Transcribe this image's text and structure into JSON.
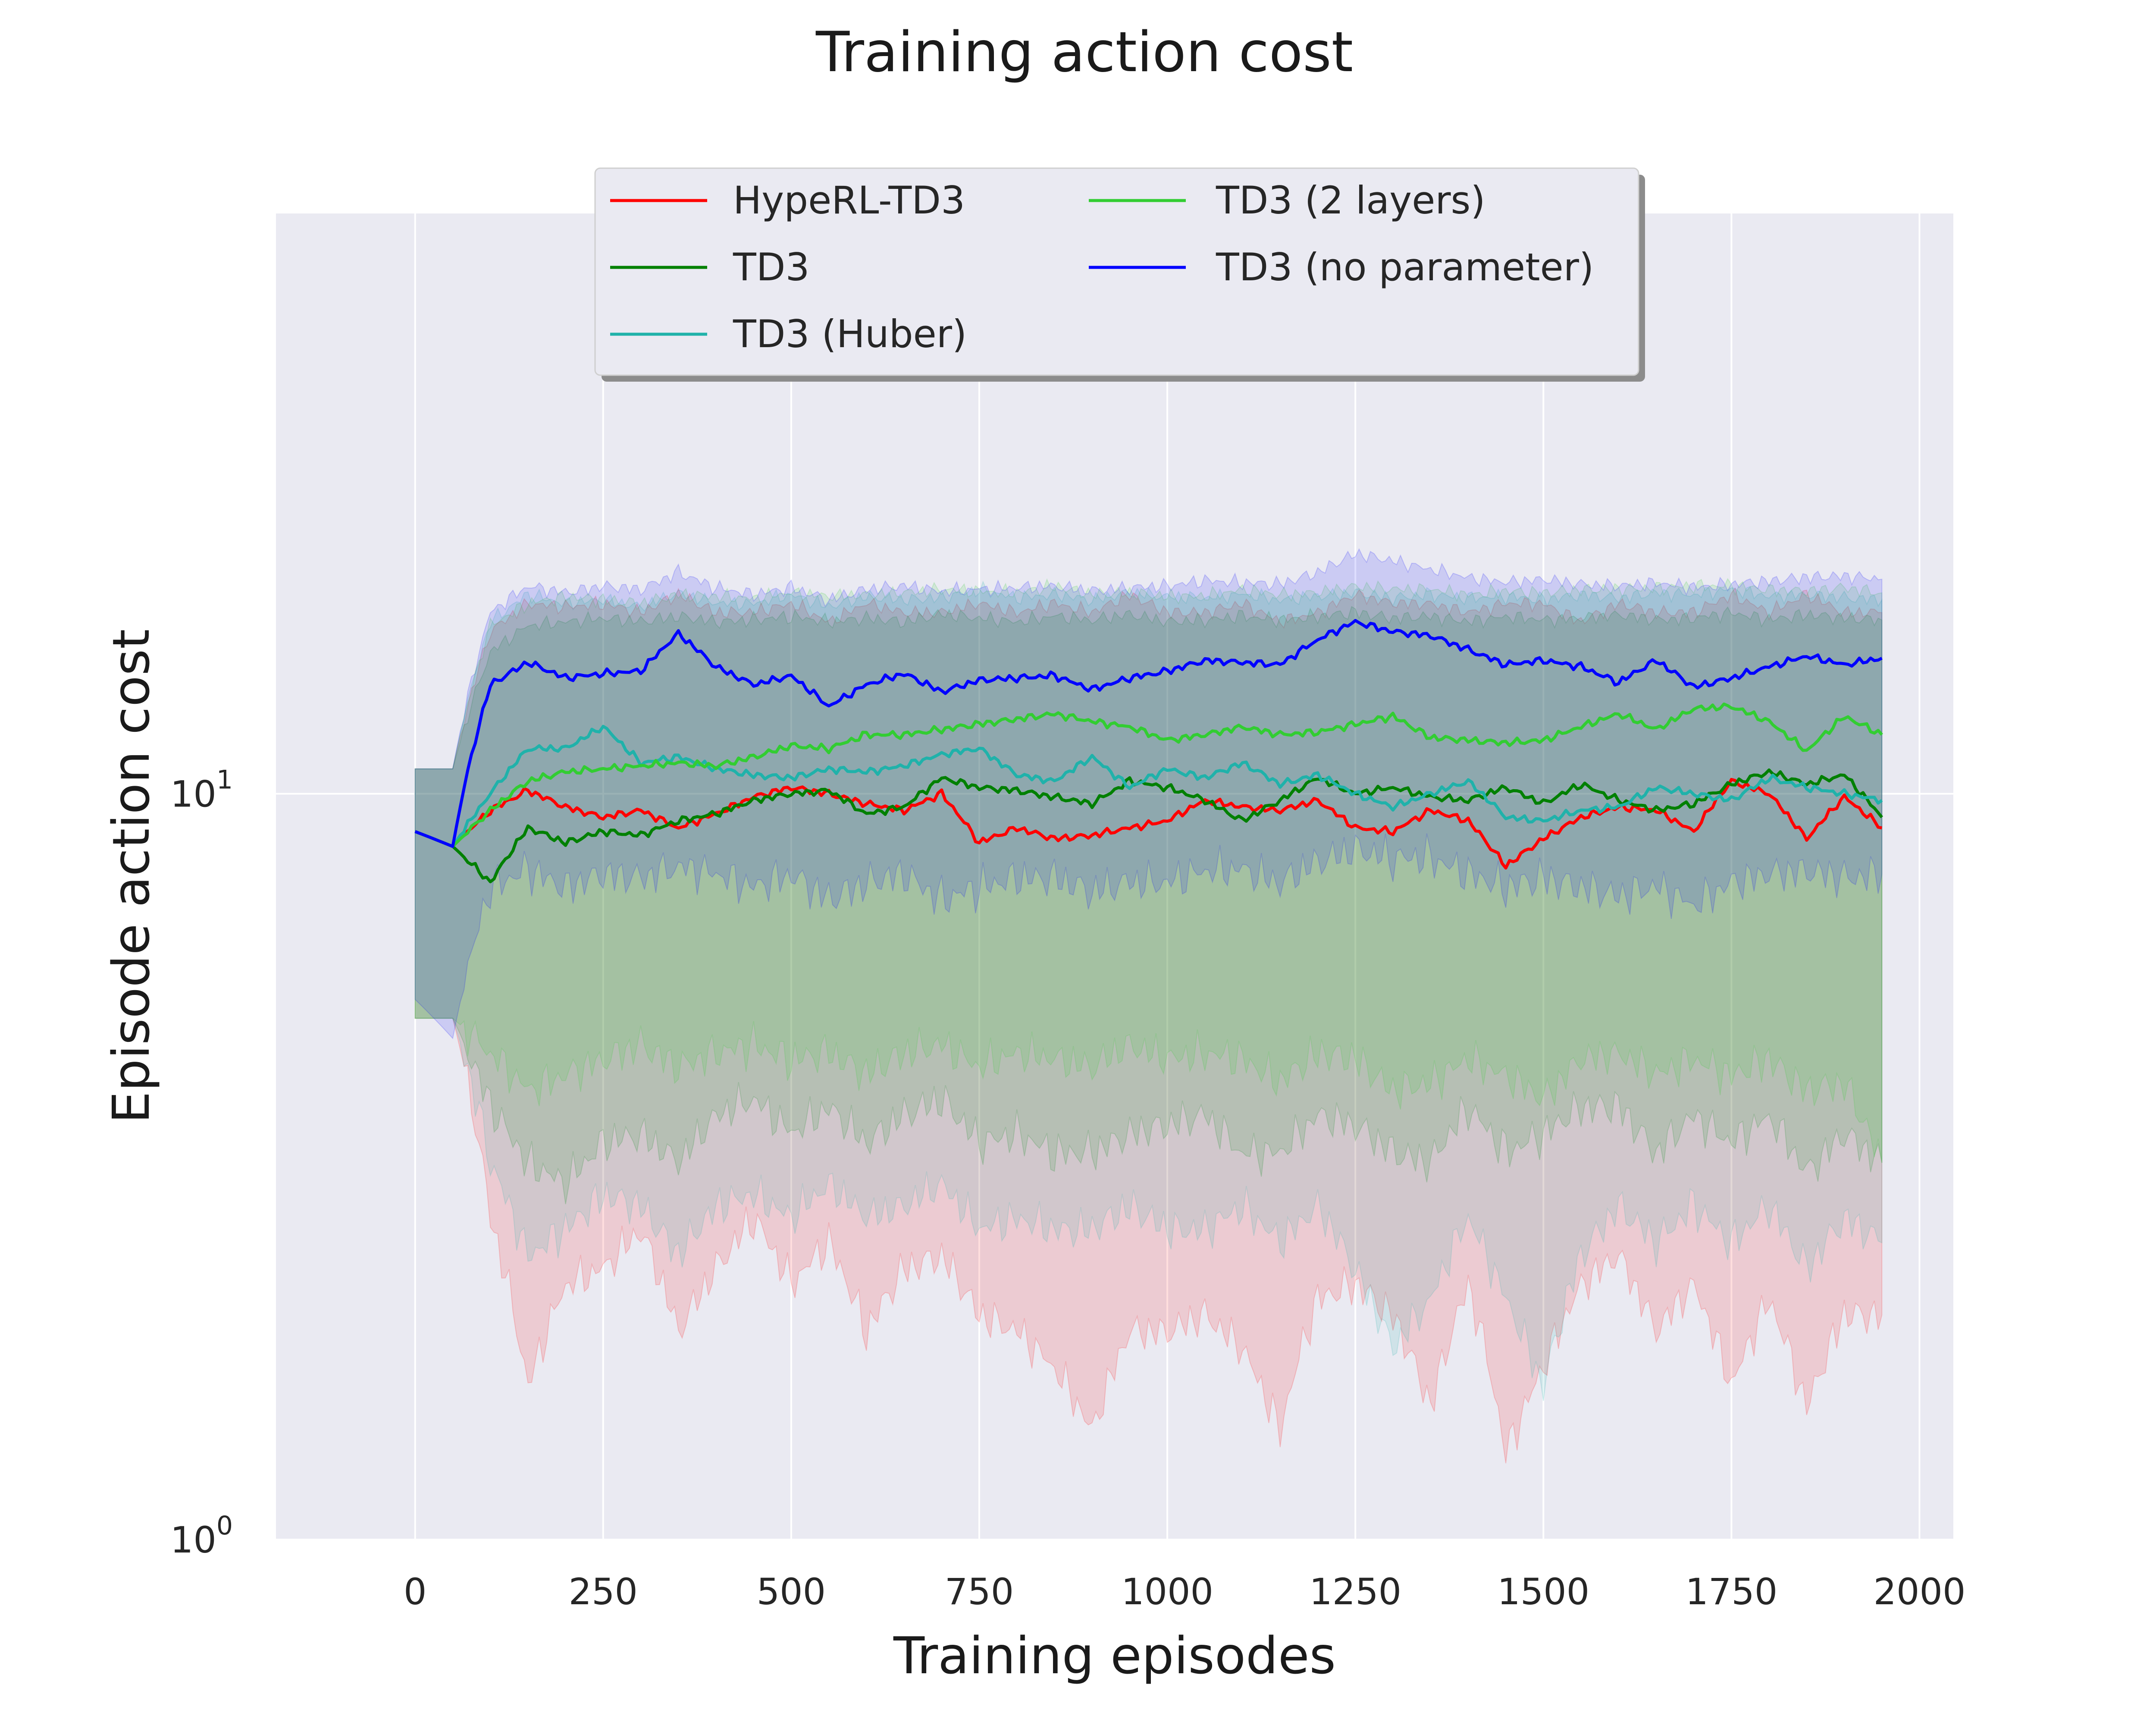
{
  "chart_data": {
    "type": "line",
    "title": "Training action cost",
    "xlabel": "Training episodes",
    "ylabel": "Episode action cost",
    "yscale": "log",
    "xlim": [
      -185,
      2045
    ],
    "ylim": [
      1,
      60
    ],
    "x_ticks": [
      0,
      250,
      500,
      750,
      1000,
      1250,
      1500,
      1750,
      2000
    ],
    "x_tick_labels": [
      "0",
      "250",
      "500",
      "750",
      "1000",
      "1250",
      "1500",
      "1750",
      "2000"
    ],
    "y_ticks": [
      {
        "value": 1,
        "base": "10",
        "exp": "0"
      },
      {
        "value": 10,
        "base": "10",
        "exp": "1"
      }
    ],
    "grid": true,
    "legend_position": "top-center",
    "x": [
      0,
      50,
      100,
      150,
      200,
      250,
      300,
      350,
      400,
      450,
      500,
      550,
      600,
      650,
      700,
      750,
      800,
      850,
      900,
      950,
      1000,
      1050,
      1100,
      1150,
      1200,
      1250,
      1300,
      1350,
      1400,
      1450,
      1500,
      1550,
      1600,
      1650,
      1700,
      1750,
      1800,
      1850,
      1900,
      1950
    ],
    "series": [
      {
        "name": "HypeRL-TD3",
        "color": "#ff0000",
        "values": [
          8.9,
          8.5,
          9.5,
          10.1,
          9.6,
          9.3,
          9.5,
          9.0,
          9.4,
          9.9,
          10.2,
          10.0,
          9.7,
          9.5,
          10.0,
          8.6,
          9.0,
          8.7,
          8.8,
          9.0,
          9.2,
          9.8,
          9.6,
          9.5,
          9.8,
          9.0,
          8.9,
          9.5,
          9.2,
          8.0,
          8.7,
          9.3,
          9.6,
          9.5,
          8.9,
          10.4,
          10.0,
          8.7,
          9.9,
          9.0
        ],
        "lower": [
          5.0,
          5.0,
          2.7,
          1.6,
          2.2,
          2.3,
          2.6,
          1.9,
          2.3,
          2.7,
          2.2,
          2.5,
          1.9,
          2.3,
          2.4,
          2.0,
          1.9,
          1.7,
          1.4,
          1.9,
          1.9,
          2.0,
          1.8,
          1.4,
          2.1,
          2.2,
          2.0,
          1.5,
          2.2,
          1.3,
          1.7,
          2.2,
          2.4,
          1.9,
          2.2,
          1.6,
          2.1,
          1.5,
          2.0,
          2.0
        ],
        "upper": [
          10.8,
          10.8,
          16.5,
          18.0,
          17.8,
          18.0,
          17.5,
          18.5,
          17.5,
          17.5,
          18.0,
          17.0,
          18.0,
          17.5,
          17.5,
          18.0,
          17.5,
          18.0,
          17.5,
          18.5,
          17.5,
          17.5,
          18.0,
          17.0,
          17.5,
          18.5,
          18.0,
          18.0,
          17.5,
          18.0,
          18.0,
          17.0,
          18.0,
          17.5,
          17.5,
          18.5,
          17.5,
          18.5,
          17.5,
          17.5
        ]
      },
      {
        "name": "TD3",
        "color": "#008000",
        "values": [
          8.9,
          8.5,
          7.6,
          9.0,
          8.6,
          8.9,
          8.8,
          9.2,
          9.4,
          9.8,
          10.0,
          10.1,
          9.4,
          9.6,
          10.5,
          10.2,
          10.1,
          9.9,
          9.7,
          10.4,
          10.2,
          9.8,
          9.2,
          9.8,
          10.5,
          10.0,
          10.2,
          9.9,
          9.8,
          10.2,
          9.7,
          10.3,
          9.8,
          9.5,
          9.7,
          10.3,
          10.7,
          10.3,
          10.6,
          9.3
        ],
        "lower": [
          5.0,
          5.0,
          3.8,
          3.2,
          3.0,
          3.4,
          3.5,
          3.2,
          3.7,
          3.9,
          3.5,
          3.8,
          3.4,
          3.7,
          3.9,
          3.4,
          3.5,
          3.3,
          3.3,
          3.5,
          3.6,
          3.7,
          3.3,
          3.3,
          3.7,
          3.6,
          3.3,
          3.2,
          3.8,
          3.3,
          3.5,
          3.8,
          3.8,
          3.3,
          3.7,
          3.4,
          3.7,
          3.1,
          3.5,
          3.2
        ],
        "upper": [
          10.8,
          10.8,
          15.5,
          16.8,
          17.0,
          17.2,
          17.0,
          17.3,
          17.0,
          17.1,
          17.3,
          17.0,
          17.2,
          17.0,
          17.4,
          17.2,
          17.0,
          17.3,
          17.1,
          17.4,
          17.0,
          17.1,
          17.3,
          17.1,
          17.3,
          17.5,
          17.2,
          17.3,
          17.0,
          17.3,
          17.1,
          17.2,
          17.4,
          17.1,
          17.2,
          17.5,
          17.1,
          17.4,
          17.2,
          17.1
        ]
      },
      {
        "name": "TD3 (Huber)",
        "color": "#20b2aa",
        "values": [
          8.9,
          8.5,
          10.0,
          11.5,
          11.5,
          12.3,
          11.0,
          11.2,
          10.8,
          10.6,
          10.5,
          10.8,
          10.7,
          10.9,
          11.3,
          11.5,
          10.6,
          10.4,
          11.2,
          10.2,
          10.8,
          10.5,
          11.0,
          10.3,
          10.6,
          10.0,
          9.6,
          10.0,
          10.4,
          9.3,
          9.2,
          9.5,
          9.6,
          10.2,
          10.0,
          9.8,
          10.5,
          10.2,
          10.0,
          9.8
        ],
        "lower": [
          5.0,
          5.0,
          3.2,
          2.4,
          2.6,
          2.9,
          2.8,
          2.4,
          2.8,
          2.9,
          2.7,
          3.0,
          2.7,
          2.8,
          3.0,
          2.6,
          2.7,
          2.6,
          2.6,
          2.8,
          2.6,
          2.6,
          2.8,
          2.5,
          2.8,
          2.3,
          1.8,
          2.1,
          2.7,
          2.1,
          1.6,
          2.4,
          2.8,
          2.5,
          2.8,
          2.5,
          2.8,
          2.3,
          2.7,
          2.5
        ],
        "upper": [
          10.8,
          10.8,
          17.0,
          18.5,
          18.0,
          18.2,
          17.8,
          18.6,
          18.0,
          18.0,
          18.5,
          17.8,
          18.4,
          18.2,
          18.3,
          18.8,
          18.3,
          18.5,
          18.2,
          18.6,
          18.4,
          18.3,
          18.5,
          18.2,
          18.4,
          18.6,
          18.3,
          18.5,
          18.3,
          18.4,
          18.2,
          18.5,
          18.3,
          18.6,
          18.5,
          18.8,
          18.4,
          18.5,
          18.3,
          18.2
        ]
      },
      {
        "name": "TD3 (2 layers)",
        "color": "#32cd32",
        "values": [
          8.9,
          8.5,
          9.5,
          10.4,
          10.7,
          10.8,
          10.9,
          11.0,
          10.9,
          11.2,
          11.6,
          11.5,
          12.0,
          12.0,
          12.2,
          12.4,
          12.6,
          12.8,
          12.5,
          12.3,
          11.8,
          12.0,
          12.3,
          12.0,
          12.1,
          12.4,
          12.7,
          11.9,
          11.8,
          11.7,
          11.8,
          12.3,
          12.8,
          12.2,
          13.0,
          13.1,
          12.5,
          11.4,
          12.7,
          12.0
        ],
        "lower": [
          5.0,
          5.0,
          4.5,
          4.0,
          4.2,
          4.4,
          4.6,
          4.3,
          4.5,
          4.6,
          4.4,
          4.5,
          4.2,
          4.5,
          4.6,
          4.3,
          4.5,
          4.4,
          4.3,
          4.6,
          4.4,
          4.5,
          4.4,
          4.1,
          4.5,
          4.4,
          4.0,
          4.1,
          4.4,
          4.2,
          3.9,
          4.4,
          4.5,
          4.2,
          4.4,
          4.2,
          4.4,
          4.0,
          4.1,
          3.2
        ],
        "upper": [
          10.8,
          10.8,
          16.8,
          18.0,
          18.4,
          18.2,
          18.0,
          18.5,
          18.4,
          18.3,
          18.6,
          18.4,
          18.5,
          18.6,
          18.8,
          18.7,
          18.6,
          19.0,
          18.5,
          18.6,
          18.4,
          18.4,
          18.8,
          18.5,
          18.6,
          19.0,
          18.8,
          18.8,
          18.5,
          18.7,
          18.6,
          18.8,
          18.8,
          18.9,
          19.0,
          19.0,
          18.8,
          18.7,
          18.9,
          18.6
        ]
      },
      {
        "name": "TD3 (no parameter)",
        "color": "#0000ff",
        "values": [
          8.9,
          8.5,
          14.0,
          15.0,
          14.3,
          14.5,
          14.6,
          16.4,
          14.8,
          14.0,
          14.4,
          13.1,
          14.0,
          14.5,
          13.7,
          14.2,
          14.3,
          14.4,
          13.8,
          14.3,
          14.6,
          15.1,
          15.0,
          14.9,
          16.1,
          17.0,
          16.5,
          16.3,
          15.6,
          14.9,
          15.1,
          14.8,
          14.1,
          15.1,
          13.9,
          14.3,
          14.8,
          15.3,
          14.9,
          15.2
        ],
        "lower": [
          5.3,
          4.7,
          7.5,
          7.9,
          7.5,
          7.8,
          7.7,
          8.0,
          7.8,
          7.5,
          7.8,
          7.2,
          7.6,
          7.8,
          7.2,
          7.5,
          7.7,
          7.7,
          7.4,
          7.6,
          7.6,
          7.9,
          7.9,
          7.6,
          8.1,
          8.4,
          8.2,
          8.2,
          7.8,
          7.5,
          7.7,
          7.5,
          7.3,
          7.5,
          7.1,
          7.6,
          7.8,
          7.9,
          7.7,
          7.8
        ],
        "upper": [
          10.8,
          10.8,
          17.5,
          19.0,
          18.6,
          19.0,
          18.8,
          19.8,
          18.9,
          18.5,
          18.9,
          18.2,
          18.8,
          19.0,
          18.7,
          18.8,
          18.9,
          19.0,
          18.7,
          18.9,
          19.0,
          19.3,
          19.2,
          19.1,
          19.8,
          21.0,
          20.5,
          20.0,
          19.5,
          19.2,
          19.4,
          19.1,
          19.0,
          19.2,
          18.9,
          19.1,
          19.3,
          19.5,
          19.6,
          19.4
        ]
      }
    ]
  }
}
